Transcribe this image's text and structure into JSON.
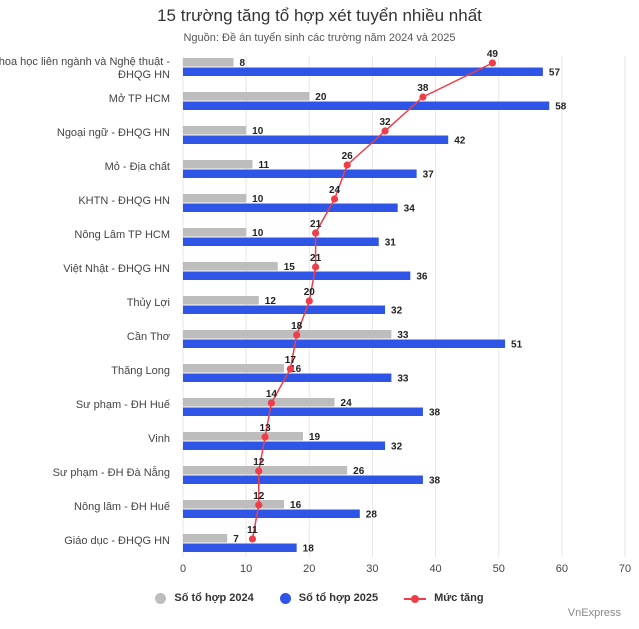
{
  "title": "15 trường tăng tổ hợp xét tuyển nhiều nhất",
  "subtitle": "Nguồn: Đề án tuyển sinh các trường năm 2024 và 2025",
  "source": "VnExpress",
  "colors": {
    "s2024": "#bdbdbd",
    "s2025": "#2f55e6",
    "growth": "#ef3e4a",
    "grid": "#e6e6e6"
  },
  "legend": {
    "s2024": "Số tổ hợp 2024",
    "s2025": "Số tổ hợp 2025",
    "growth": "Mức tăng"
  },
  "chart_data": {
    "type": "bar",
    "orientation": "horizontal",
    "title": "15 trường tăng tổ hợp xét tuyển nhiều nhất",
    "subtitle": "Nguồn: Đề án tuyển sinh các trường năm 2024 và 2025",
    "categories": [
      "Khoa học liên ngành và Nghệ thuật - ĐHQG HN",
      "Mở TP HCM",
      "Ngoại ngữ - ĐHQG HN",
      "Mỏ - Địa chất",
      "KHTN - ĐHQG HN",
      "Nông Lâm TP HCM",
      "Việt Nhật - ĐHQG HN",
      "Thủy Lợi",
      "Cần Thơ",
      "Thăng Long",
      "Sư phạm - ĐH Huế",
      "Vinh",
      "Sư phạm - ĐH Đà Nẵng",
      "Nông lâm - ĐH Huế",
      "Giáo dục - ĐHQG HN"
    ],
    "series": [
      {
        "name": "Số tổ hợp 2024",
        "type": "bar",
        "values": [
          8,
          20,
          10,
          11,
          10,
          10,
          15,
          12,
          33,
          16,
          24,
          19,
          26,
          16,
          7
        ]
      },
      {
        "name": "Số tổ hợp 2025",
        "type": "bar",
        "values": [
          57,
          58,
          42,
          37,
          34,
          31,
          36,
          32,
          51,
          33,
          38,
          32,
          38,
          28,
          18
        ]
      },
      {
        "name": "Mức tăng",
        "type": "line",
        "values": [
          49,
          38,
          32,
          26,
          24,
          21,
          21,
          20,
          18,
          17,
          14,
          13,
          12,
          12,
          11
        ]
      }
    ],
    "xlim": [
      0,
      70
    ],
    "xticks": [
      0,
      10,
      20,
      30,
      40,
      50,
      60,
      70
    ],
    "grid": true,
    "legend_position": "bottom"
  }
}
